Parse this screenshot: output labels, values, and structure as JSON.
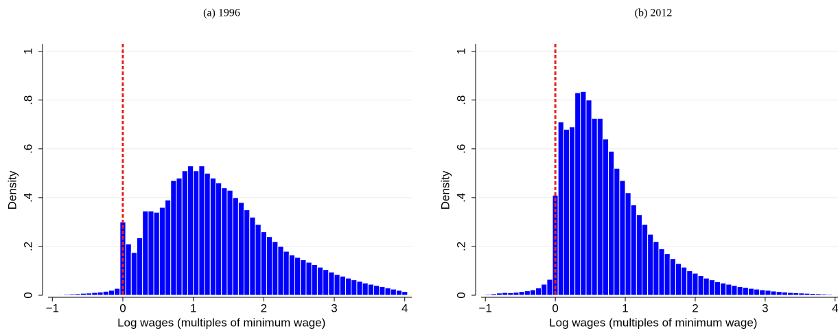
{
  "chart_data": [
    {
      "type": "histogram",
      "title": "(a) 1996",
      "xlabel": "Log wages (multiples of minimum wage)",
      "ylabel": "Density",
      "color": "#0000ff",
      "reference_line": {
        "x": 0,
        "color": "#e8201e"
      },
      "xlim": [
        -1.1,
        4.1
      ],
      "ylim": [
        0,
        1.03
      ],
      "grid": true,
      "xticks": [
        {
          "value": -1,
          "label": "−1"
        },
        0,
        1,
        2,
        3,
        4
      ],
      "yticks": [
        0,
        {
          "value": 0.2,
          "label": ".2"
        },
        {
          "value": 0.4,
          "label": ".4"
        },
        {
          "value": 0.6,
          "label": ".6"
        },
        {
          "value": 0.8,
          "label": ".8"
        },
        1
      ],
      "bins": [
        -1.08,
        -1.0,
        -0.92,
        -0.84,
        -0.76,
        -0.68,
        -0.6,
        -0.52,
        -0.44,
        -0.36,
        -0.28,
        -0.2,
        -0.12,
        -0.04,
        0.04,
        0.12,
        0.2,
        0.28,
        0.36,
        0.44,
        0.52,
        0.6,
        0.68,
        0.76,
        0.84,
        0.92,
        1.0,
        1.08,
        1.16,
        1.24,
        1.32,
        1.4,
        1.48,
        1.56,
        1.64,
        1.72,
        1.8,
        1.88,
        1.96,
        2.04,
        2.12,
        2.2,
        2.28,
        2.36,
        2.44,
        2.52,
        2.6,
        2.68,
        2.76,
        2.84,
        2.92,
        3.0,
        3.08,
        3.16,
        3.24,
        3.32,
        3.4,
        3.48,
        3.56,
        3.64,
        3.72,
        3.8,
        3.88,
        3.96,
        4.04
      ],
      "values": [
        0.001,
        0.002,
        0.003,
        0.004,
        0.005,
        0.006,
        0.008,
        0.009,
        0.011,
        0.013,
        0.016,
        0.02,
        0.028,
        0.3,
        0.21,
        0.175,
        0.235,
        0.345,
        0.345,
        0.34,
        0.36,
        0.39,
        0.47,
        0.48,
        0.51,
        0.53,
        0.51,
        0.53,
        0.5,
        0.48,
        0.46,
        0.44,
        0.43,
        0.4,
        0.38,
        0.35,
        0.32,
        0.29,
        0.26,
        0.24,
        0.22,
        0.2,
        0.18,
        0.165,
        0.155,
        0.145,
        0.135,
        0.125,
        0.115,
        0.105,
        0.095,
        0.085,
        0.078,
        0.07,
        0.063,
        0.057,
        0.05,
        0.045,
        0.04,
        0.035,
        0.03,
        0.025,
        0.02,
        0.015
      ]
    },
    {
      "type": "histogram",
      "title": "(b) 2012",
      "xlabel": "Log wages (multiples of minimum wage)",
      "ylabel": "Density",
      "color": "#0000ff",
      "reference_line": {
        "x": 0,
        "color": "#e8201e"
      },
      "xlim": [
        -1.1,
        4.1
      ],
      "ylim": [
        0,
        1.03
      ],
      "grid": true,
      "xticks": [
        {
          "value": -1,
          "label": "−1"
        },
        0,
        1,
        2,
        3,
        4
      ],
      "yticks": [
        0,
        {
          "value": 0.2,
          "label": ".2"
        },
        {
          "value": 0.4,
          "label": ".4"
        },
        {
          "value": 0.6,
          "label": ".6"
        },
        {
          "value": 0.8,
          "label": ".8"
        },
        1
      ],
      "bins": [
        -1.08,
        -1.0,
        -0.92,
        -0.84,
        -0.76,
        -0.68,
        -0.6,
        -0.52,
        -0.44,
        -0.36,
        -0.28,
        -0.2,
        -0.12,
        -0.04,
        0.04,
        0.12,
        0.2,
        0.28,
        0.36,
        0.44,
        0.52,
        0.6,
        0.68,
        0.76,
        0.84,
        0.92,
        1.0,
        1.08,
        1.16,
        1.24,
        1.32,
        1.4,
        1.48,
        1.56,
        1.64,
        1.72,
        1.8,
        1.88,
        1.96,
        2.04,
        2.12,
        2.2,
        2.28,
        2.36,
        2.44,
        2.52,
        2.6,
        2.68,
        2.76,
        2.84,
        2.92,
        3.0,
        3.08,
        3.16,
        3.24,
        3.32,
        3.4,
        3.48,
        3.56,
        3.64,
        3.72,
        3.8,
        3.88,
        3.96,
        4.04
      ],
      "values": [
        0.002,
        0.004,
        0.006,
        0.009,
        0.011,
        0.01,
        0.012,
        0.015,
        0.018,
        0.022,
        0.03,
        0.045,
        0.065,
        0.41,
        0.71,
        0.68,
        0.69,
        0.83,
        0.835,
        0.8,
        0.725,
        0.725,
        0.64,
        0.59,
        0.52,
        0.47,
        0.42,
        0.37,
        0.33,
        0.29,
        0.25,
        0.22,
        0.19,
        0.17,
        0.15,
        0.13,
        0.115,
        0.1,
        0.09,
        0.08,
        0.07,
        0.063,
        0.055,
        0.05,
        0.045,
        0.04,
        0.035,
        0.032,
        0.028,
        0.025,
        0.022,
        0.02,
        0.017,
        0.015,
        0.013,
        0.011,
        0.01,
        0.009,
        0.008,
        0.007,
        0.006,
        0.005,
        0.004,
        0.003
      ]
    }
  ]
}
